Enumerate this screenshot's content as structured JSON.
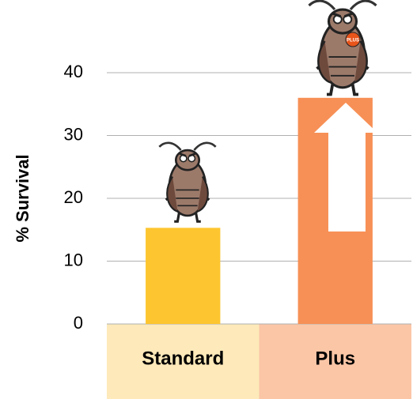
{
  "chart_data": {
    "type": "bar",
    "y_label": "% Survival",
    "categories": [
      "Standard",
      "Plus"
    ],
    "values": [
      15.3,
      36
    ],
    "colors": [
      "#fdc52f",
      "#f79056"
    ],
    "category_backgrounds": [
      "#fde9b9",
      "#fbc6a6"
    ],
    "ylim": [
      0,
      40
    ],
    "yticks": [
      0,
      10,
      20,
      30,
      40
    ],
    "grid": true,
    "annotation": "PLUS"
  }
}
